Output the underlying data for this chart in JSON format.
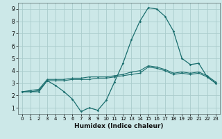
{
  "xlabel": "Humidex (Indice chaleur)",
  "bg_color": "#cce8e8",
  "grid_color": "#aacccc",
  "line_color": "#1a6e6e",
  "xlim": [
    -0.5,
    23.5
  ],
  "ylim": [
    0.5,
    9.5
  ],
  "xticks": [
    0,
    1,
    2,
    3,
    4,
    5,
    6,
    7,
    8,
    9,
    10,
    11,
    12,
    13,
    14,
    15,
    16,
    17,
    18,
    19,
    20,
    21,
    22,
    23
  ],
  "yticks": [
    1,
    2,
    3,
    4,
    5,
    6,
    7,
    8,
    9
  ],
  "series1_x": [
    0,
    1,
    2,
    3,
    4,
    5,
    6,
    7,
    8,
    9,
    10,
    11,
    12,
    13,
    14,
    15,
    16,
    17,
    18,
    19,
    20,
    21,
    22,
    23
  ],
  "series1_y": [
    2.3,
    2.3,
    2.3,
    3.2,
    2.8,
    2.3,
    1.7,
    0.7,
    1.0,
    0.8,
    1.6,
    3.1,
    4.6,
    6.5,
    8.0,
    9.1,
    9.0,
    8.4,
    7.2,
    5.0,
    4.5,
    4.6,
    3.5,
    3.0
  ],
  "series2_x": [
    0,
    1,
    2,
    3,
    4,
    5,
    6,
    7,
    8,
    9,
    10,
    11,
    12,
    13,
    14,
    15,
    16,
    17,
    18,
    19,
    20,
    21,
    22,
    23
  ],
  "series2_y": [
    2.3,
    2.3,
    2.4,
    3.2,
    3.2,
    3.2,
    3.3,
    3.3,
    3.3,
    3.4,
    3.4,
    3.5,
    3.6,
    3.7,
    3.8,
    4.3,
    4.2,
    4.0,
    3.7,
    3.8,
    3.7,
    3.8,
    3.5,
    3.0
  ],
  "series3_x": [
    0,
    1,
    2,
    3,
    4,
    5,
    6,
    7,
    8,
    9,
    10,
    11,
    12,
    13,
    14,
    15,
    16,
    17,
    18,
    19,
    20,
    21,
    22,
    23
  ],
  "series3_y": [
    2.3,
    2.4,
    2.5,
    3.3,
    3.3,
    3.3,
    3.4,
    3.4,
    3.5,
    3.5,
    3.5,
    3.6,
    3.7,
    3.9,
    4.0,
    4.4,
    4.3,
    4.1,
    3.8,
    3.9,
    3.8,
    3.9,
    3.6,
    3.1
  ]
}
